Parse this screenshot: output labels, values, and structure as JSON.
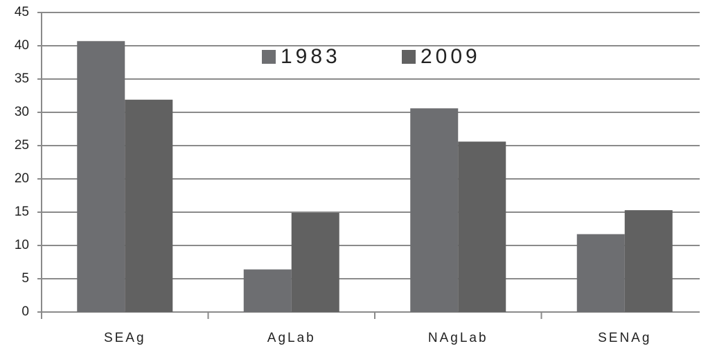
{
  "chart_data": {
    "type": "bar",
    "categories": [
      "SEAg",
      "AgLab",
      "NAgLab",
      "SENAg"
    ],
    "series": [
      {
        "name": "1983",
        "color": "#6d6e71",
        "values": [
          40.7,
          6.4,
          30.6,
          11.7
        ]
      },
      {
        "name": "2009",
        "color": "#616161",
        "values": [
          31.9,
          14.9,
          25.6,
          15.3
        ]
      }
    ],
    "ylim": [
      0,
      45
    ],
    "yticks": [
      0,
      5,
      10,
      15,
      20,
      25,
      30,
      35,
      40,
      45
    ],
    "grid": true
  }
}
